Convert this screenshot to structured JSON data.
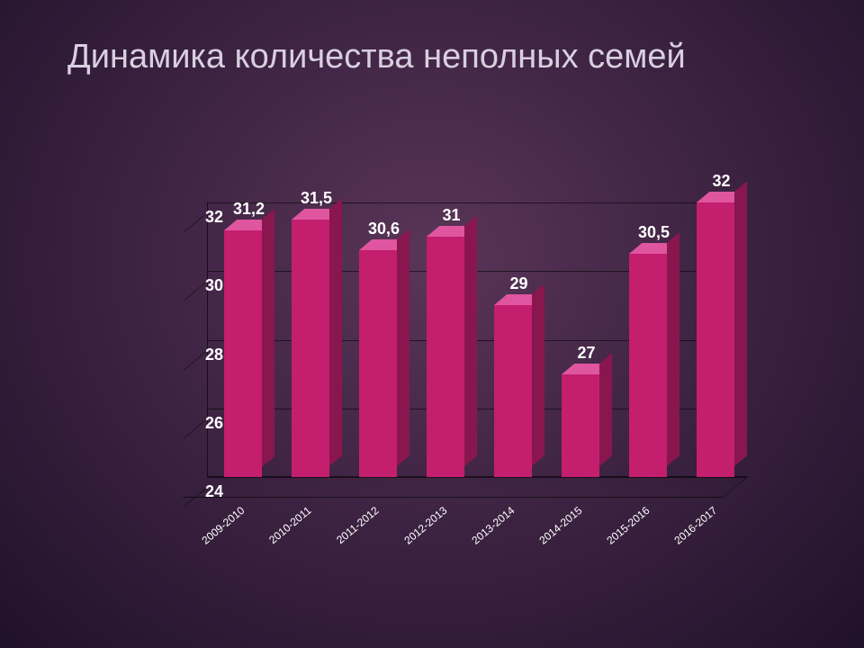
{
  "title": "Динамика количества неполных семей",
  "chart": {
    "type": "bar3d",
    "background_gradient": [
      "#5a3558",
      "#3f2444",
      "#2b1833",
      "#1f1127"
    ],
    "text_color": "#ffffff",
    "title_color": "#d8cfe0",
    "title_fontsize": 38,
    "axis_label_fontsize": 18,
    "data_label_fontsize": 18,
    "xlabel_fontsize": 12,
    "grid_color": "rgba(0,0,0,0.55)",
    "bar_face_color": "#c41e6e",
    "bar_top_color": "#e055a0",
    "bar_side_color": "#8a1650",
    "bar_width_ratio": 0.56,
    "ylim": [
      24,
      32
    ],
    "ytick_step": 2,
    "yticks": [
      24,
      26,
      28,
      30,
      32
    ],
    "categories": [
      "2009-2010",
      "2010-2011",
      "2011-2012",
      "2012-2013",
      "2013-2014",
      "2014-2015",
      "2015-2016",
      "2016-2017"
    ],
    "values": [
      31.2,
      31.5,
      30.6,
      31,
      29,
      27,
      30.5,
      32
    ],
    "data_labels": [
      "31,2",
      "31,5",
      "30,6",
      "31",
      "29",
      "27",
      "30,5",
      "32"
    ]
  }
}
